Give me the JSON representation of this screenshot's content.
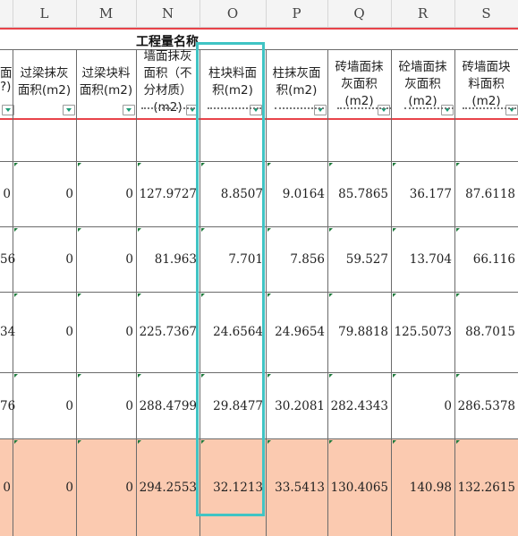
{
  "columns": [
    "L",
    "M",
    "N",
    "O",
    "P",
    "Q",
    "R",
    "S"
  ],
  "group_title": "工程量名称",
  "headers": {
    "partial": [
      "面",
      "?)"
    ],
    "L": [
      "过梁抹灰",
      "面积(m2)"
    ],
    "M": [
      "过梁块料",
      "面积(m2)"
    ],
    "N": [
      "墙面抹灰",
      "面积（不",
      "分材质）",
      "(m2)"
    ],
    "O": [
      "柱块料面",
      "积(m2)"
    ],
    "P": [
      "柱抹灰面",
      "积(m2)"
    ],
    "Q": [
      "砖墙面抹",
      "灰面积",
      "(m2)"
    ],
    "R": [
      "砼墙面抹",
      "灰面积",
      "(m2)"
    ],
    "S": [
      "砖墙面块",
      "料面积",
      "(m2)"
    ]
  },
  "rows": [
    {
      "partial": "0",
      "L": "0",
      "M": "0",
      "N": "127.9727",
      "O": "8.8507",
      "P": "9.0164",
      "Q": "85.7865",
      "R": "36.177",
      "S": "87.6118"
    },
    {
      "partial": "56",
      "L": "0",
      "M": "0",
      "N": "81.963",
      "O": "7.701",
      "P": "7.856",
      "Q": "59.527",
      "R": "13.704",
      "S": "66.116"
    },
    {
      "partial": "34",
      "L": "0",
      "M": "0",
      "N": "225.7367",
      "O": "24.6564",
      "P": "24.9654",
      "Q": "79.8818",
      "R": "125.5073",
      "S": "88.7015"
    },
    {
      "partial": "76",
      "L": "0",
      "M": "0",
      "N": "288.4799",
      "O": "29.8477",
      "P": "30.2081",
      "Q": "282.4343",
      "R": "0",
      "S": "286.5378"
    },
    {
      "partial": "0",
      "L": "0",
      "M": "0",
      "N": "294.2553",
      "O": "32.1213",
      "P": "33.5413",
      "Q": "130.4065",
      "R": "140.98",
      "S": "132.2615"
    }
  ],
  "colors": {
    "highlight_box": "#40c4c4",
    "highlight_row": "#fbcab0",
    "freeze_line": "#e8434a"
  }
}
